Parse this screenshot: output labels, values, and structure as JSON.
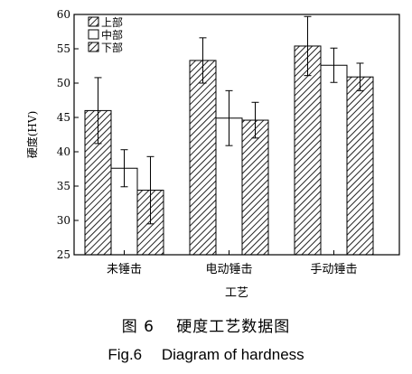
{
  "chart_data": {
    "type": "bar",
    "categories": [
      "未锤击",
      "电动锤击",
      "手动锤击"
    ],
    "xlabel": "工艺",
    "ylabel": "硬度(HV)",
    "ylim": [
      25,
      60
    ],
    "yticks": [
      25,
      30,
      35,
      40,
      45,
      50,
      55,
      60
    ],
    "legend_position": "top-left",
    "series": [
      {
        "name": "上部",
        "pattern": "diagonal-hatch",
        "values": [
          46.0,
          53.3,
          55.4
        ],
        "errors": [
          4.8,
          3.3,
          4.3
        ]
      },
      {
        "name": "中部",
        "pattern": "solid-white",
        "values": [
          37.6,
          44.9,
          52.6
        ],
        "errors": [
          2.7,
          4.0,
          2.5
        ]
      },
      {
        "name": "下部",
        "pattern": "diagonal-hatch",
        "values": [
          34.4,
          44.6,
          50.9
        ],
        "errors": [
          4.9,
          2.6,
          2.0
        ]
      }
    ]
  },
  "caption": {
    "cn": "图 6　 硬度工艺数据图",
    "en": "Fig.6　 Diagram  of hardness"
  }
}
